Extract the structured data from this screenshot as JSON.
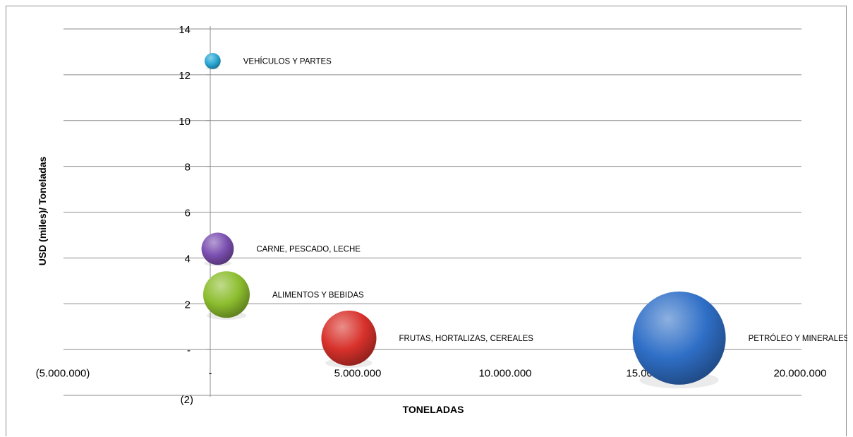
{
  "chart_data": {
    "type": "bubble",
    "title": "",
    "xlabel": "TONELADAS",
    "ylabel": "USD (miles)/ Toneladas",
    "xlim": [
      -5000000,
      20000000
    ],
    "ylim": [
      -2,
      14
    ],
    "x_ticks": [
      {
        "value": -5000000,
        "label": "(5.000.000)"
      },
      {
        "value": 0,
        "label": "-"
      },
      {
        "value": 5000000,
        "label": "5.000.000"
      },
      {
        "value": 10000000,
        "label": "10.000.000"
      },
      {
        "value": 15000000,
        "label": "15.000.000"
      },
      {
        "value": 20000000,
        "label": "20.000.000"
      }
    ],
    "y_ticks": [
      {
        "value": 14,
        "label": "14"
      },
      {
        "value": 12,
        "label": "12"
      },
      {
        "value": 10,
        "label": "10"
      },
      {
        "value": 8,
        "label": "8"
      },
      {
        "value": 6,
        "label": "6"
      },
      {
        "value": 4,
        "label": "4"
      },
      {
        "value": 2,
        "label": "2"
      },
      {
        "value": 0,
        "label": "-"
      },
      {
        "value": -2,
        "label": "(2)"
      }
    ],
    "grid": true,
    "legend": "none",
    "series": [
      {
        "label": "VEHÍCULOS Y PARTES",
        "x": 80000,
        "y": 12.6,
        "size": 0.03,
        "color": "#2aa8d4"
      },
      {
        "label": "CARNE, PESCADO, LECHE",
        "x": 250000,
        "y": 4.4,
        "size": 0.12,
        "color": "#7b4fb0"
      },
      {
        "label": "ALIMENTOS Y BEBIDAS",
        "x": 550000,
        "y": 2.4,
        "size": 0.25,
        "color": "#8cbd2e"
      },
      {
        "label": "FRUTAS, HORTALIZAS, CEREALES",
        "x": 4700000,
        "y": 0.5,
        "size": 0.35,
        "color": "#d8312b"
      },
      {
        "label": "PETRÓLEO Y MINERALES,",
        "x": 15900000,
        "y": 0.5,
        "size": 1.0,
        "color": "#2f6fc7"
      }
    ]
  }
}
